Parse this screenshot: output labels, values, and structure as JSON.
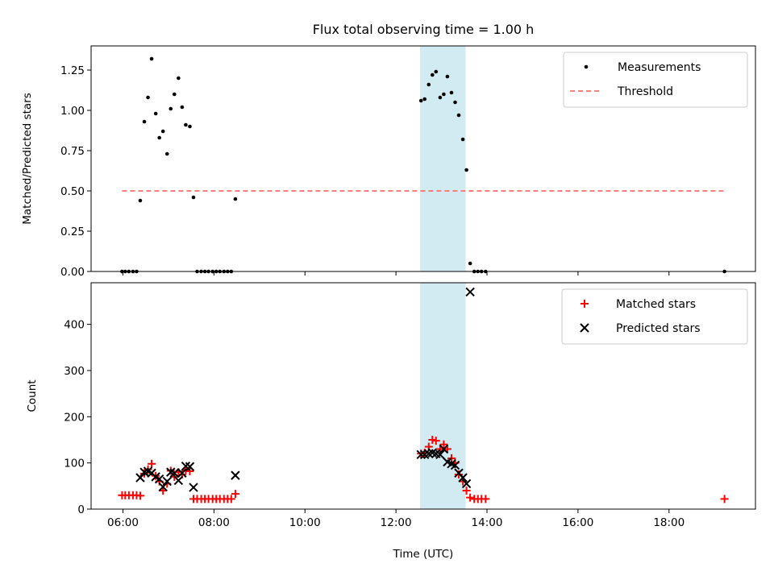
{
  "chart_data": [
    {
      "type": "scatter",
      "title": "Flux total observing time = 1.00 h",
      "ylabel": "Matched/Predicted stars",
      "xlabel": "",
      "xlim": [
        5.3,
        19.9
      ],
      "ylim": [
        0.0,
        1.4
      ],
      "yticks": [
        0.0,
        0.25,
        0.5,
        0.75,
        1.0,
        1.25
      ],
      "ytick_labels": [
        "0.00",
        "0.25",
        "0.50",
        "0.75",
        "1.00",
        "1.25"
      ],
      "grid": false,
      "legend": "top-right",
      "highlight_span": [
        12.53,
        13.53
      ],
      "highlight_color": "#add8e6",
      "series": [
        {
          "name": "Measurements",
          "marker": "dot",
          "color": "#000000",
          "points": [
            [
              5.98,
              0.0
            ],
            [
              6.05,
              0.0
            ],
            [
              6.13,
              0.0
            ],
            [
              6.22,
              0.0
            ],
            [
              6.3,
              0.0
            ],
            [
              6.38,
              0.44
            ],
            [
              6.47,
              0.93
            ],
            [
              6.55,
              1.08
            ],
            [
              6.63,
              1.32
            ],
            [
              6.72,
              0.98
            ],
            [
              6.8,
              0.83
            ],
            [
              6.88,
              0.87
            ],
            [
              6.97,
              0.73
            ],
            [
              7.05,
              1.01
            ],
            [
              7.13,
              1.1
            ],
            [
              7.22,
              1.2
            ],
            [
              7.3,
              1.02
            ],
            [
              7.38,
              0.91
            ],
            [
              7.47,
              0.9
            ],
            [
              7.55,
              0.46
            ],
            [
              7.63,
              0.0
            ],
            [
              7.72,
              0.0
            ],
            [
              7.8,
              0.0
            ],
            [
              7.88,
              0.0
            ],
            [
              7.97,
              0.0
            ],
            [
              8.05,
              0.0
            ],
            [
              8.13,
              0.0
            ],
            [
              8.22,
              0.0
            ],
            [
              8.3,
              0.0
            ],
            [
              8.38,
              0.0
            ],
            [
              8.47,
              0.45
            ],
            [
              12.55,
              1.06
            ],
            [
              12.63,
              1.07
            ],
            [
              12.72,
              1.16
            ],
            [
              12.8,
              1.22
            ],
            [
              12.88,
              1.24
            ],
            [
              12.97,
              1.08
            ],
            [
              13.05,
              1.1
            ],
            [
              13.13,
              1.21
            ],
            [
              13.22,
              1.11
            ],
            [
              13.3,
              1.05
            ],
            [
              13.38,
              0.97
            ],
            [
              13.47,
              0.82
            ],
            [
              13.55,
              0.63
            ],
            [
              13.63,
              0.05
            ],
            [
              13.72,
              0.0
            ],
            [
              13.8,
              0.0
            ],
            [
              13.88,
              0.0
            ],
            [
              13.97,
              0.0
            ],
            [
              19.22,
              0.0
            ]
          ]
        },
        {
          "name": "Threshold",
          "type": "line",
          "style": "dashed",
          "color": "#ff7f7f",
          "points": [
            [
              5.98,
              0.5
            ],
            [
              19.22,
              0.5
            ]
          ]
        }
      ]
    },
    {
      "type": "scatter",
      "title": "",
      "ylabel": "Count",
      "xlabel": "Time (UTC)",
      "xlim": [
        5.3,
        19.9
      ],
      "ylim": [
        0,
        490
      ],
      "xticks": [
        6,
        8,
        10,
        12,
        14,
        16,
        18
      ],
      "xtick_labels": [
        "06:00",
        "08:00",
        "10:00",
        "12:00",
        "14:00",
        "16:00",
        "18:00"
      ],
      "yticks": [
        0,
        100,
        200,
        300,
        400
      ],
      "ytick_labels": [
        "0",
        "100",
        "200",
        "300",
        "400"
      ],
      "grid": false,
      "legend": "top-right",
      "highlight_span": [
        12.53,
        13.53
      ],
      "highlight_color": "#add8e6",
      "series": [
        {
          "name": "Matched stars",
          "marker": "plus",
          "color": "#ff0000",
          "points": [
            [
              5.98,
              30
            ],
            [
              6.05,
              30
            ],
            [
              6.13,
              30
            ],
            [
              6.22,
              30
            ],
            [
              6.3,
              30
            ],
            [
              6.38,
              29
            ],
            [
              6.47,
              77
            ],
            [
              6.55,
              86
            ],
            [
              6.63,
              98
            ],
            [
              6.72,
              72
            ],
            [
              6.8,
              60
            ],
            [
              6.88,
              40
            ],
            [
              6.97,
              55
            ],
            [
              7.05,
              83
            ],
            [
              7.13,
              70
            ],
            [
              7.22,
              80
            ],
            [
              7.3,
              75
            ],
            [
              7.38,
              85
            ],
            [
              7.47,
              82
            ],
            [
              7.55,
              22
            ],
            [
              7.63,
              22
            ],
            [
              7.72,
              22
            ],
            [
              7.8,
              22
            ],
            [
              7.88,
              22
            ],
            [
              7.97,
              22
            ],
            [
              8.05,
              22
            ],
            [
              8.13,
              22
            ],
            [
              8.22,
              22
            ],
            [
              8.3,
              22
            ],
            [
              8.38,
              22
            ],
            [
              8.47,
              33
            ],
            [
              12.55,
              120
            ],
            [
              12.63,
              122
            ],
            [
              12.72,
              135
            ],
            [
              12.8,
              150
            ],
            [
              12.88,
              148
            ],
            [
              12.97,
              130
            ],
            [
              13.05,
              140
            ],
            [
              13.13,
              130
            ],
            [
              13.22,
              110
            ],
            [
              13.3,
              100
            ],
            [
              13.38,
              75
            ],
            [
              13.47,
              60
            ],
            [
              13.55,
              40
            ],
            [
              13.63,
              25
            ],
            [
              13.72,
              22
            ],
            [
              13.8,
              22
            ],
            [
              13.88,
              22
            ],
            [
              13.97,
              22
            ],
            [
              19.22,
              22
            ]
          ]
        },
        {
          "name": "Predicted stars",
          "marker": "x",
          "color": "#000000",
          "points": [
            [
              6.38,
              68
            ],
            [
              6.47,
              80
            ],
            [
              6.55,
              82
            ],
            [
              6.63,
              78
            ],
            [
              6.72,
              70
            ],
            [
              6.8,
              65
            ],
            [
              6.88,
              48
            ],
            [
              6.97,
              60
            ],
            [
              7.05,
              80
            ],
            [
              7.13,
              78
            ],
            [
              7.22,
              62
            ],
            [
              7.3,
              78
            ],
            [
              7.38,
              93
            ],
            [
              7.47,
              92
            ],
            [
              7.55,
              47
            ],
            [
              8.47,
              73
            ],
            [
              12.55,
              118
            ],
            [
              12.63,
              118
            ],
            [
              12.72,
              120
            ],
            [
              12.8,
              122
            ],
            [
              12.88,
              120
            ],
            [
              12.97,
              118
            ],
            [
              13.05,
              130
            ],
            [
              13.13,
              102
            ],
            [
              13.22,
              98
            ],
            [
              13.3,
              95
            ],
            [
              13.38,
              78
            ],
            [
              13.47,
              68
            ],
            [
              13.55,
              55
            ],
            [
              13.63,
              470
            ]
          ]
        }
      ]
    }
  ]
}
